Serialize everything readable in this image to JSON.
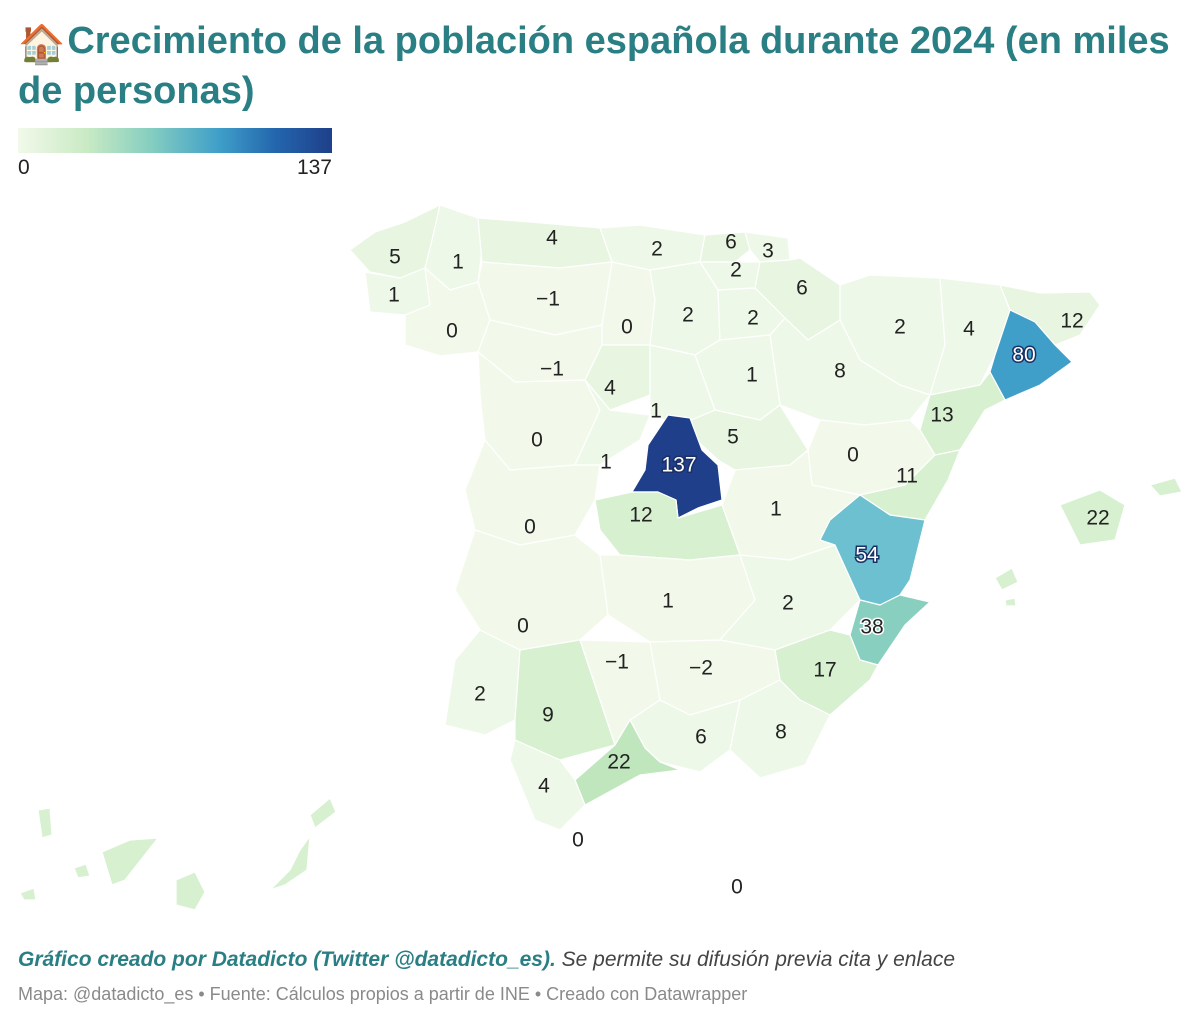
{
  "title": {
    "emoji": "🏠",
    "text": "Crecimiento de la población española durante 2024 (en miles de personas)"
  },
  "legend": {
    "min_label": "0",
    "max_label": "137",
    "colors": [
      "#f2f9ea",
      "#c9eac4",
      "#86cec0",
      "#3f9fc9",
      "#2366ad",
      "#1f3f8a"
    ]
  },
  "map": {
    "unit": "miles de personas",
    "value_range": [
      -2,
      137
    ],
    "provinces": [
      {
        "value": "5"
      },
      {
        "value": "1"
      },
      {
        "value": "1"
      },
      {
        "value": "0"
      },
      {
        "value": "4"
      },
      {
        "value": "−1"
      },
      {
        "value": "2"
      },
      {
        "value": "6"
      },
      {
        "value": "3"
      },
      {
        "value": "2"
      },
      {
        "value": "6"
      },
      {
        "value": "0"
      },
      {
        "value": "2"
      },
      {
        "value": "2"
      },
      {
        "value": "2"
      },
      {
        "value": "4"
      },
      {
        "value": "12"
      },
      {
        "value": "80"
      },
      {
        "value": "−1"
      },
      {
        "value": "4"
      },
      {
        "value": "1"
      },
      {
        "value": "8"
      },
      {
        "value": "13"
      },
      {
        "value": "0"
      },
      {
        "value": "1"
      },
      {
        "value": "5"
      },
      {
        "value": "1"
      },
      {
        "value": "137"
      },
      {
        "value": "0"
      },
      {
        "value": "11"
      },
      {
        "value": "0"
      },
      {
        "value": "12"
      },
      {
        "value": "1"
      },
      {
        "value": "22"
      },
      {
        "value": "54"
      },
      {
        "value": "0"
      },
      {
        "value": "1"
      },
      {
        "value": "2"
      },
      {
        "value": "38"
      },
      {
        "value": "−1"
      },
      {
        "value": "−2"
      },
      {
        "value": "17"
      },
      {
        "value": "2"
      },
      {
        "value": "9"
      },
      {
        "value": "6"
      },
      {
        "value": "8"
      },
      {
        "value": "22"
      },
      {
        "value": "4"
      },
      {
        "value": "0"
      },
      {
        "value": "0"
      }
    ]
  },
  "footer": {
    "credit_bold": "Gráfico creado por Datadicto (Twitter @datadicto_es).",
    "credit_rest": " Se permite su difusión previa cita y enlace",
    "source": "Mapa: @datadicto_es • Fuente: Cálculos propios a partir de INE • Creado con Datawrapper"
  }
}
